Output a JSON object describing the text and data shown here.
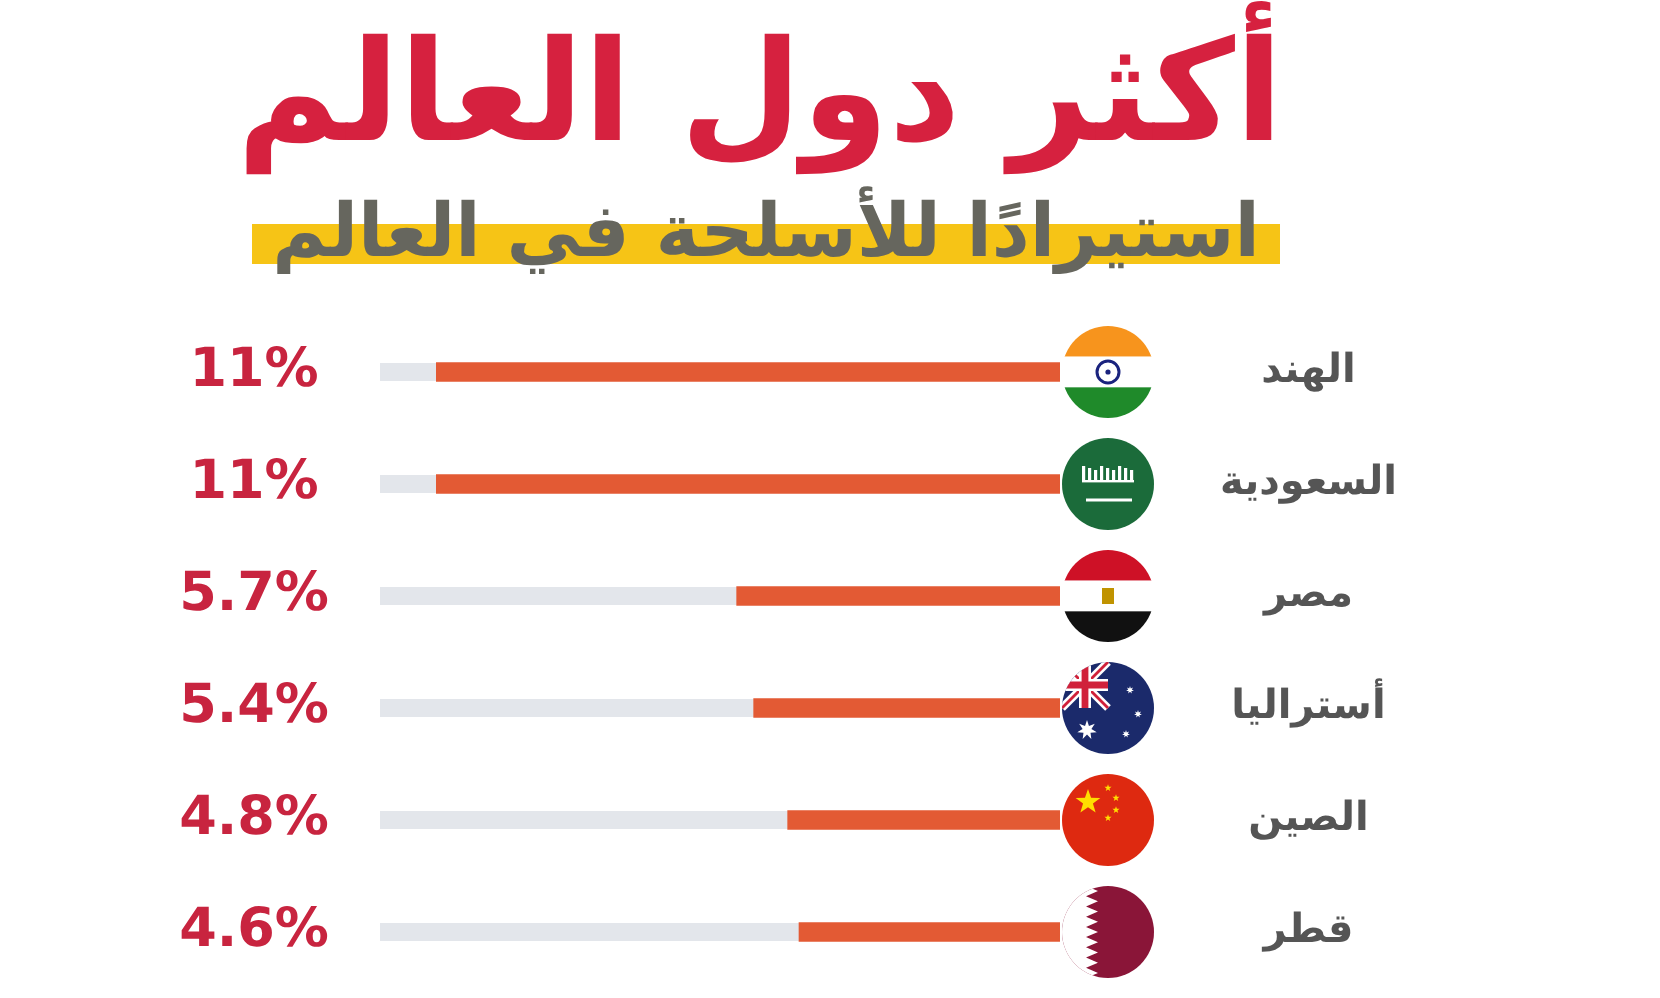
{
  "chart_data": {
    "type": "bar",
    "orientation": "horizontal",
    "title": "أكثر دول العالم",
    "subtitle": "استيرادًا للأسلحة في العالم",
    "categories": [
      "الهند",
      "السعودية",
      "مصر",
      "أستراليا",
      "الصين",
      "قطر"
    ],
    "values": [
      11,
      11,
      5.7,
      5.4,
      4.8,
      4.6
    ],
    "color": "#e35a34",
    "value_labels": [
      "11%",
      "11%",
      "5.7%",
      "5.4%",
      "4.8%",
      "4.6%"
    ],
    "xlim": [
      12,
      0
    ],
    "tick_labels": "y"
  }
}
